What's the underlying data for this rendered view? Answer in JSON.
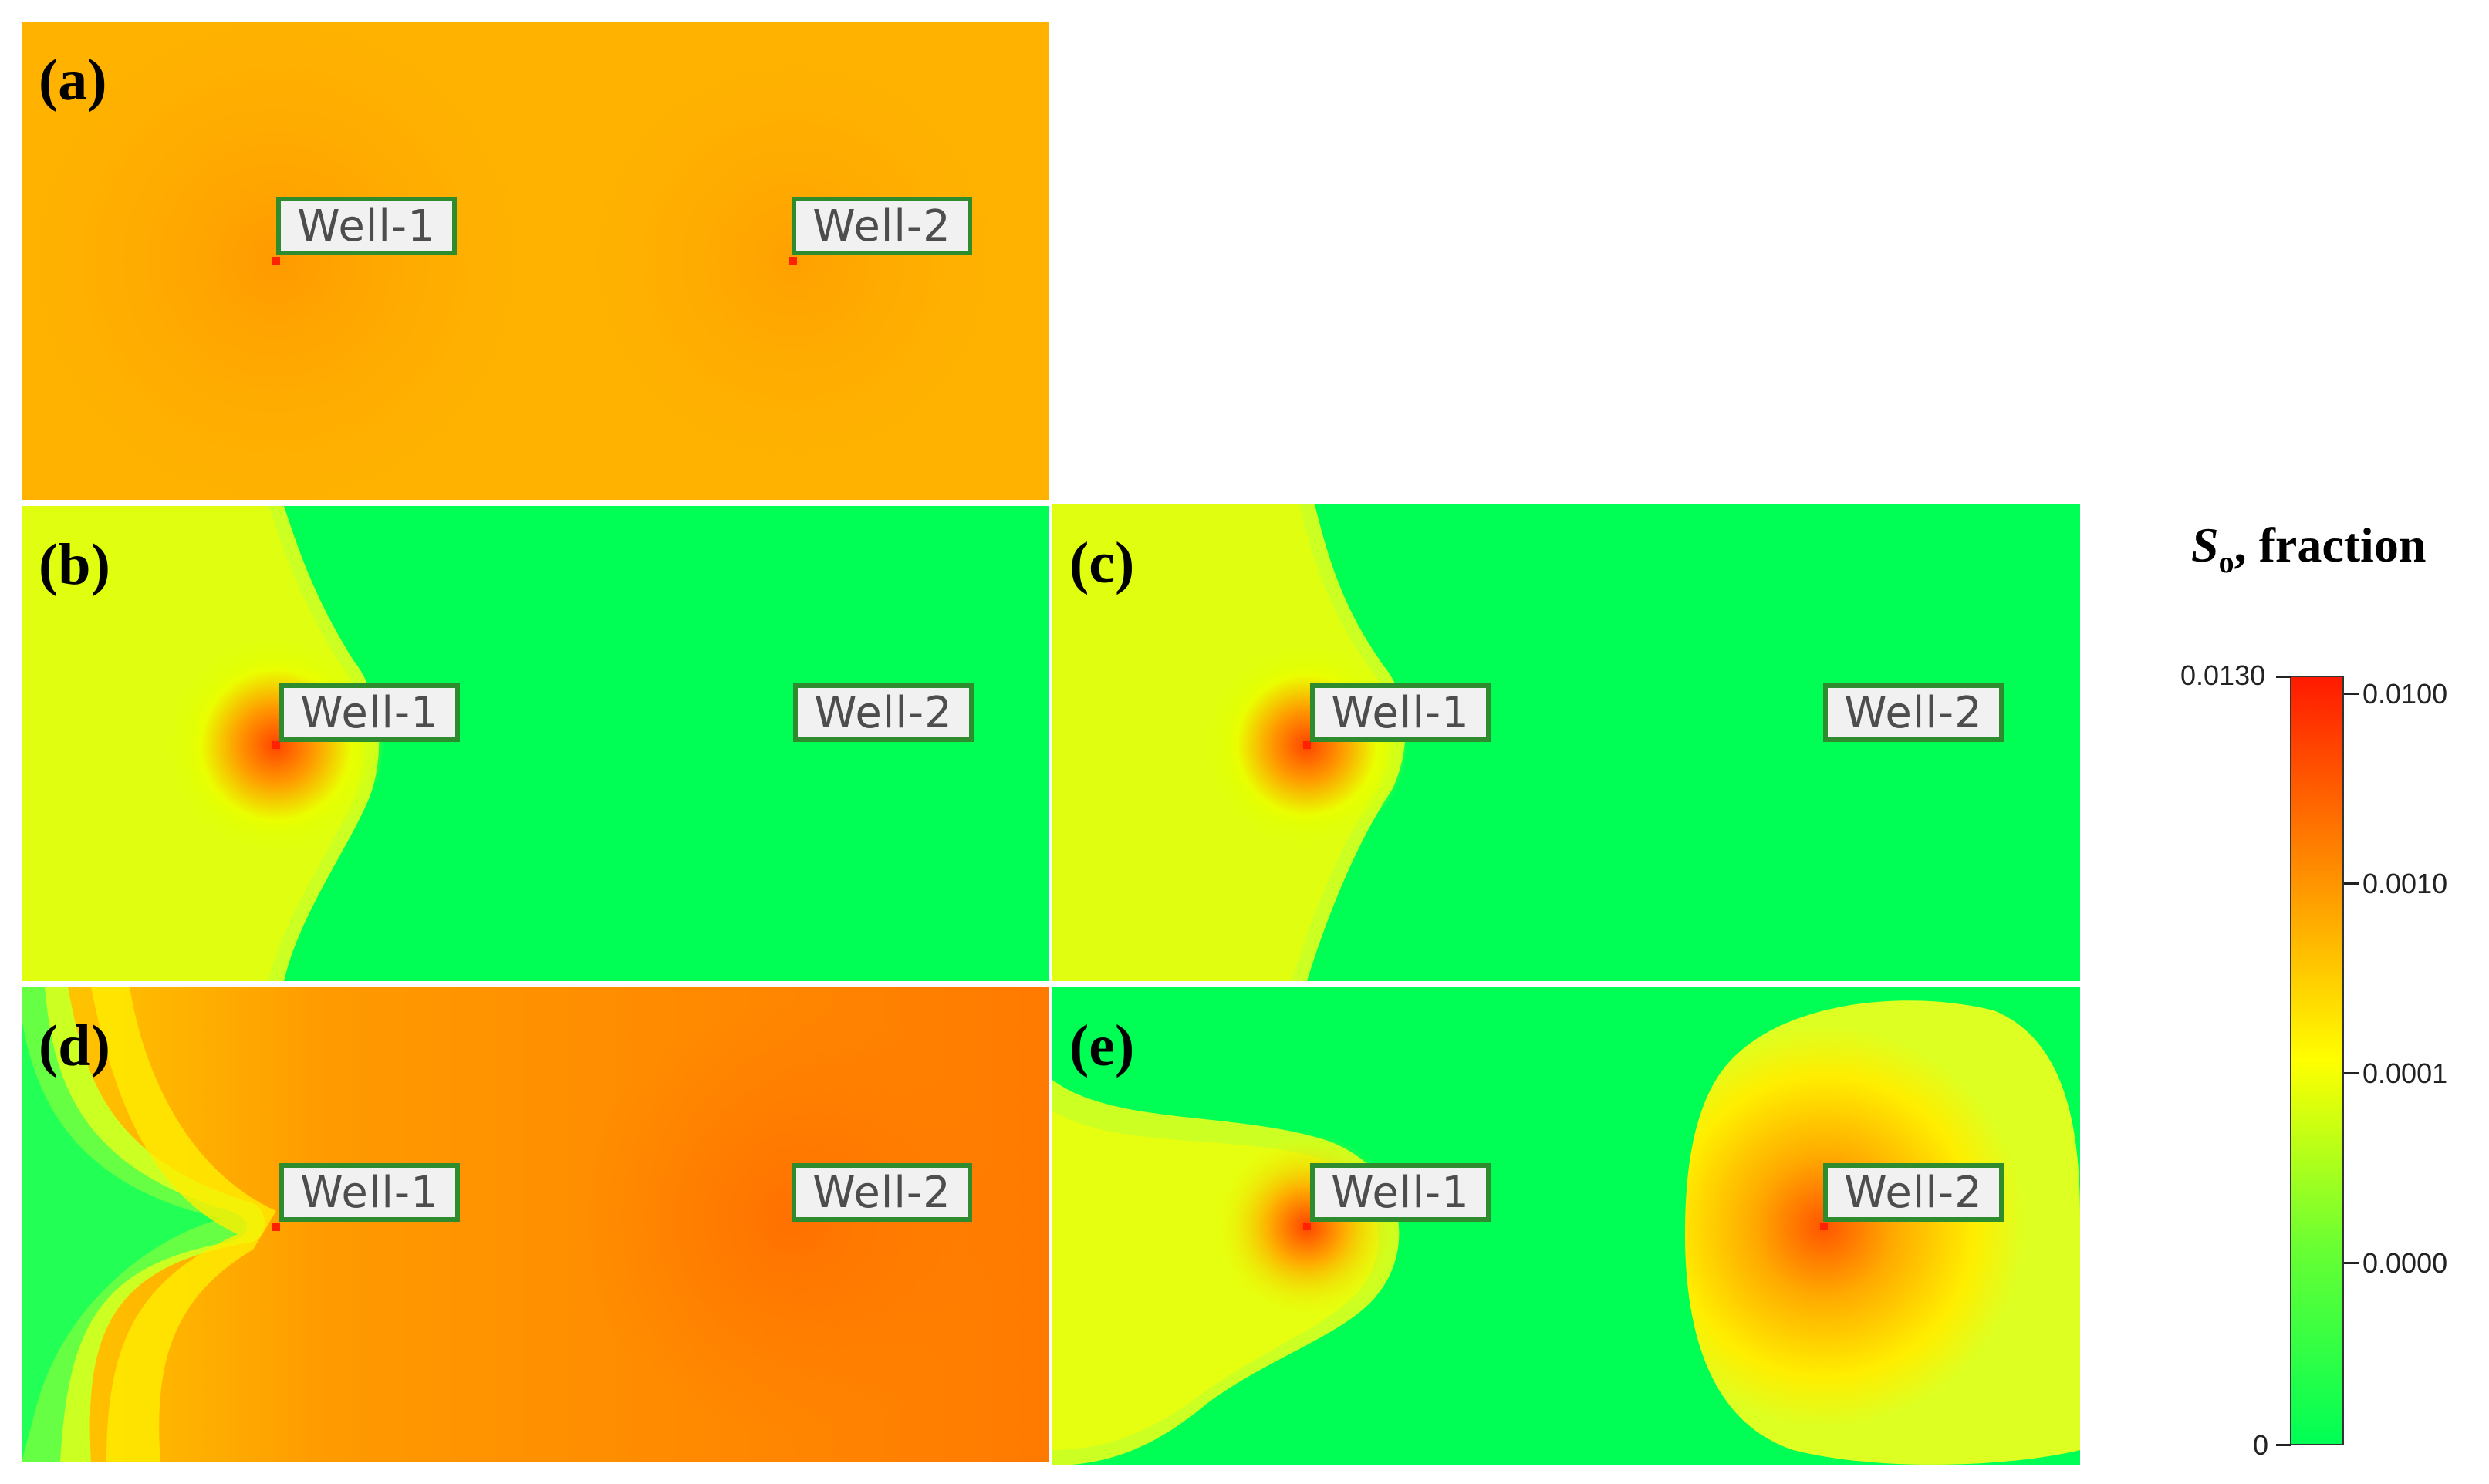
{
  "panels": [
    {
      "id": "a",
      "label": "(a)",
      "well_labels": [
        "Well-1",
        "Well-2"
      ]
    },
    {
      "id": "b",
      "label": "(b)",
      "well_labels": [
        "Well-1",
        "Well-2"
      ]
    },
    {
      "id": "c",
      "label": "(c)",
      "well_labels": [
        "Well-1",
        "Well-2"
      ]
    },
    {
      "id": "d",
      "label": "(d)",
      "well_labels": [
        "Well-1",
        "Well-2"
      ]
    },
    {
      "id": "e",
      "label": "(e)",
      "well_labels": [
        "Well-1",
        "Well-2"
      ]
    }
  ],
  "colorbar": {
    "title_symbol": "S",
    "title_subscript": "o",
    "title_rest": ", fraction",
    "left_labels": [
      "0.0130",
      "0"
    ],
    "right_labels": [
      "0.0100",
      "0.0010",
      "0.0001",
      "0.0000"
    ],
    "colors": [
      "#ff1a00",
      "#ff8c00",
      "#ffff00",
      "#66ff33",
      "#00ff55"
    ]
  }
}
